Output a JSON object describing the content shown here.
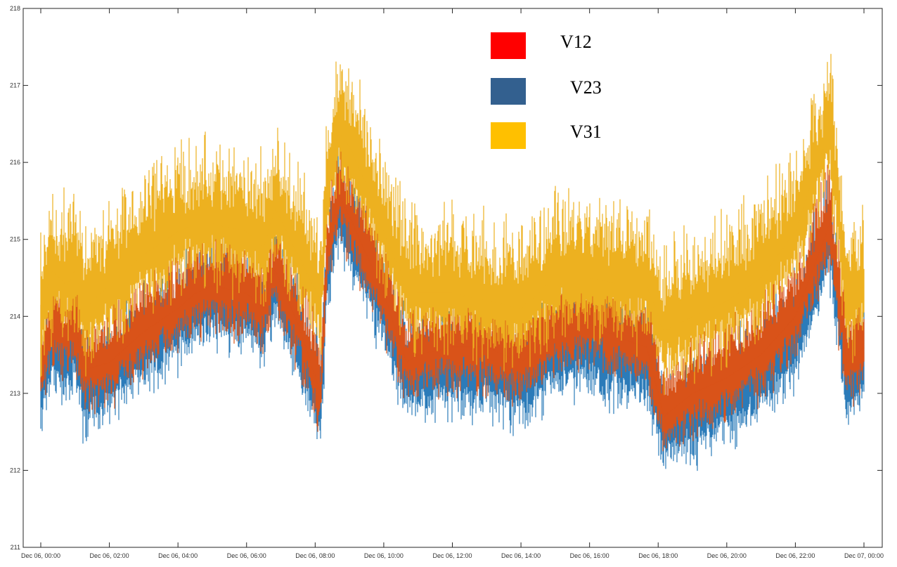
{
  "chart_data": {
    "type": "line",
    "title": "",
    "xlabel": "",
    "ylabel": "",
    "xlim": [
      "Dec 06, 00:00",
      "Dec 07, 00:00"
    ],
    "ylim": [
      211,
      218
    ],
    "grid": false,
    "legend_position": "top-right",
    "y_ticks": [
      "211",
      "212",
      "213",
      "214",
      "215",
      "216",
      "217",
      "218"
    ],
    "x_ticks": [
      "Dec 06, 00:00",
      "Dec 06, 02:00",
      "Dec 06, 04:00",
      "Dec 06, 06:00",
      "Dec 06, 08:00",
      "Dec 06, 10:00",
      "Dec 06, 12:00",
      "Dec 06, 14:00",
      "Dec 06, 16:00",
      "Dec 06, 18:00",
      "Dec 06, 20:00",
      "Dec 06, 22:00",
      "Dec 07, 00:00"
    ],
    "x": [
      "Dec 06, 00:00",
      "Dec 06, 00:20",
      "Dec 06, 00:45",
      "Dec 06, 01:00",
      "Dec 06, 01:15",
      "Dec 06, 02:00",
      "Dec 06, 03:00",
      "Dec 06, 04:00",
      "Dec 06, 04:30",
      "Dec 06, 05:00",
      "Dec 06, 06:00",
      "Dec 06, 06:30",
      "Dec 06, 06:50",
      "Dec 06, 07:30",
      "Dec 06, 08:10",
      "Dec 06, 08:20",
      "Dec 06, 08:40",
      "Dec 06, 09:00",
      "Dec 06, 09:30",
      "Dec 06, 10:00",
      "Dec 06, 10:40",
      "Dec 06, 11:00",
      "Dec 06, 12:00",
      "Dec 06, 13:00",
      "Dec 06, 14:00",
      "Dec 06, 15:00",
      "Dec 06, 16:00",
      "Dec 06, 17:00",
      "Dec 06, 17:40",
      "Dec 06, 18:10",
      "Dec 06, 19:00",
      "Dec 06, 20:00",
      "Dec 06, 21:00",
      "Dec 06, 22:00",
      "Dec 06, 22:50",
      "Dec 06, 23:00",
      "Dec 06, 23:30",
      "Dec 07, 00:00"
    ],
    "series": [
      {
        "name": "V12",
        "color": "#FF0000",
        "line_color": "#D95319",
        "values": [
          213.3,
          213.9,
          213.7,
          213.9,
          213.3,
          213.4,
          213.8,
          214.1,
          214.3,
          214.4,
          214.3,
          214.1,
          214.6,
          213.9,
          213.0,
          214.7,
          215.6,
          215.3,
          214.8,
          214.3,
          213.4,
          213.5,
          213.6,
          213.6,
          213.4,
          213.8,
          213.9,
          213.7,
          213.6,
          212.7,
          213.0,
          213.2,
          213.5,
          214.0,
          215.0,
          215.2,
          213.4,
          213.6
        ]
      },
      {
        "name": "V23",
        "color": "#33608F",
        "line_color": "#2B7BB9",
        "values": [
          213.0,
          213.6,
          213.4,
          213.6,
          213.0,
          213.2,
          213.6,
          213.9,
          214.1,
          214.2,
          214.1,
          213.9,
          214.4,
          213.7,
          212.8,
          214.5,
          215.4,
          215.1,
          214.6,
          214.1,
          213.2,
          213.2,
          213.3,
          213.3,
          213.1,
          213.5,
          213.6,
          213.4,
          213.4,
          212.5,
          212.7,
          212.9,
          213.2,
          213.7,
          214.8,
          215.0,
          213.1,
          213.3
        ]
      },
      {
        "name": "V31",
        "color": "#FFC000",
        "line_color": "#EDB120",
        "values": [
          214.0,
          214.6,
          214.4,
          214.6,
          214.1,
          214.4,
          214.8,
          215.1,
          215.2,
          215.2,
          215.1,
          214.9,
          215.4,
          214.8,
          214.2,
          215.6,
          216.4,
          216.2,
          215.7,
          215.1,
          214.4,
          214.3,
          214.3,
          214.2,
          214.1,
          214.5,
          214.5,
          214.4,
          214.4,
          213.8,
          214.0,
          214.2,
          214.5,
          215.1,
          216.2,
          216.5,
          214.2,
          214.4
        ]
      }
    ]
  }
}
